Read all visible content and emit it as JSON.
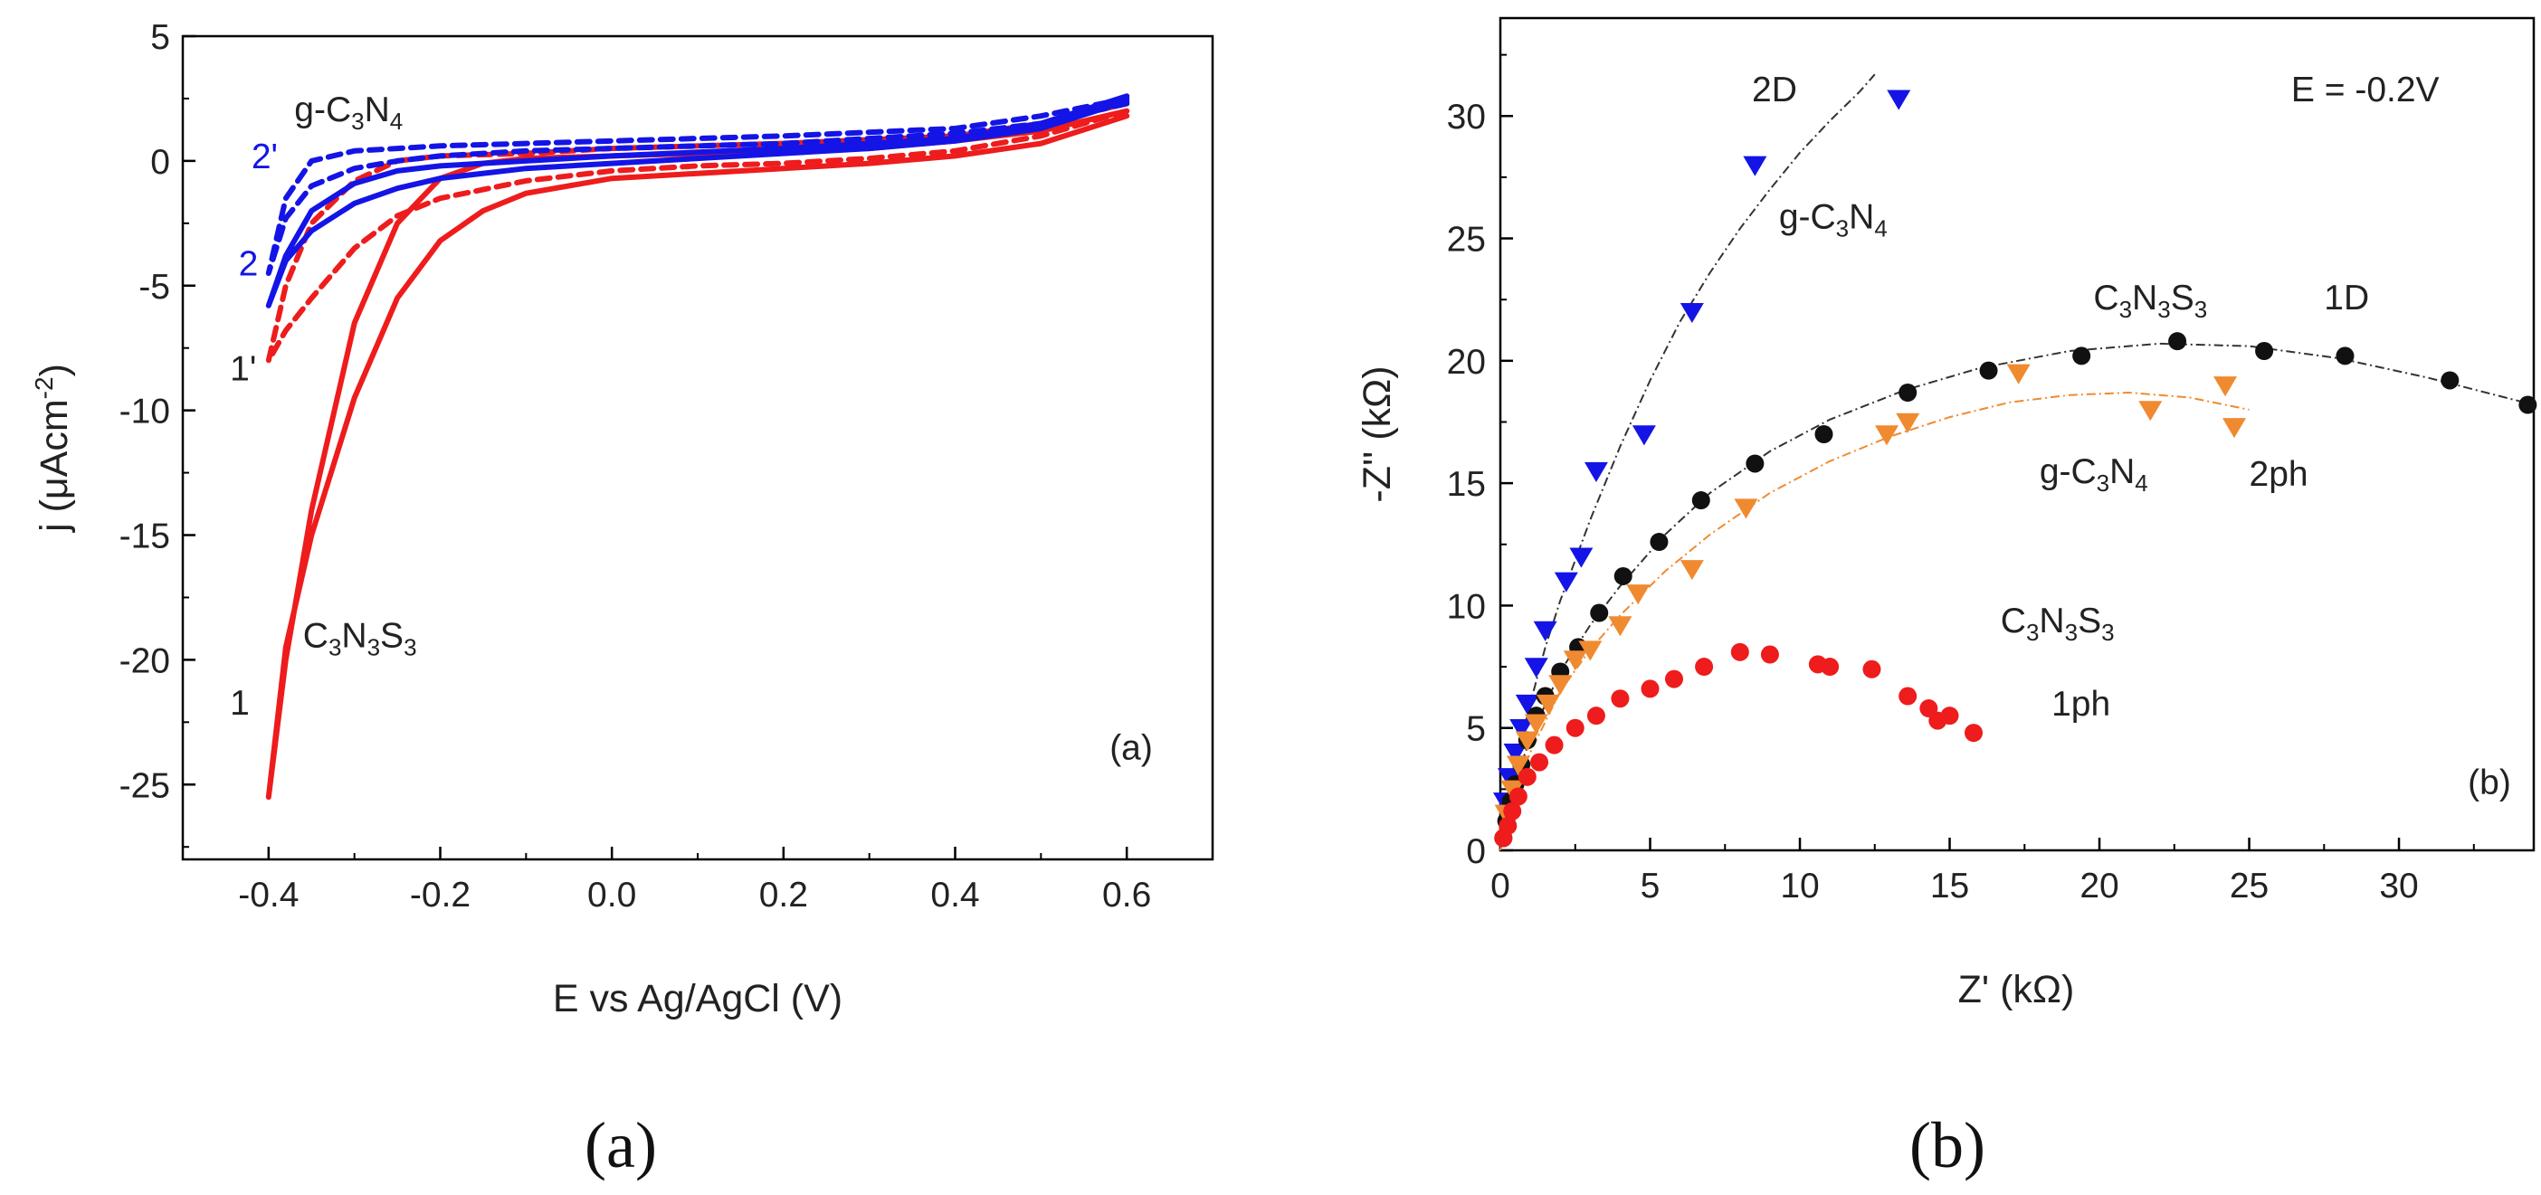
{
  "chart_data": [
    {
      "type": "line",
      "panel": "(a)",
      "xlabel": "E vs Ag/AgCl (V)",
      "ylabel_main": "j (μAcm",
      "ylabel_sup": "-2",
      "ylabel_close": ")",
      "xlim": [
        -0.5,
        0.7
      ],
      "ylim": [
        -28,
        5
      ],
      "xticks": [
        "-0.4",
        "-0.2",
        "0.0",
        "0.2",
        "0.4",
        "0.6"
      ],
      "xtick_values": [
        -0.4,
        -0.2,
        0.0,
        0.2,
        0.4,
        0.6
      ],
      "yticks": [
        "5",
        "0",
        "-5",
        "-10",
        "-15",
        "-20",
        "-25"
      ],
      "ytick_values": [
        5,
        0,
        -5,
        -10,
        -15,
        -20,
        -25
      ],
      "series": [
        {
          "name": "1 C3N3S3",
          "color": "#ee1c1c",
          "style": "solid",
          "x": [
            0.6,
            0.5,
            0.4,
            0.3,
            0.2,
            0.1,
            0.0,
            -0.1,
            -0.15,
            -0.2,
            -0.25,
            -0.3,
            -0.35,
            -0.38,
            -0.4,
            -0.38,
            -0.35,
            -0.3,
            -0.25,
            -0.2,
            -0.15,
            -0.1,
            0.0,
            0.1,
            0.2,
            0.3,
            0.4,
            0.5,
            0.6
          ],
          "y": [
            1.8,
            0.7,
            0.2,
            -0.1,
            -0.3,
            -0.5,
            -0.7,
            -1.3,
            -2.0,
            -3.2,
            -5.5,
            -9.5,
            -15.0,
            -19.5,
            -25.5,
            -20.0,
            -14.0,
            -6.5,
            -2.5,
            -0.7,
            -0.1,
            0.1,
            0.2,
            0.3,
            0.4,
            0.5,
            0.8,
            1.2,
            2.0
          ]
        },
        {
          "name": "1' C3N3S3",
          "color": "#ee1c1c",
          "style": "dashed",
          "x": [
            0.6,
            0.5,
            0.4,
            0.3,
            0.2,
            0.1,
            0.0,
            -0.1,
            -0.2,
            -0.25,
            -0.3,
            -0.35,
            -0.38,
            -0.4,
            -0.38,
            -0.35,
            -0.3,
            -0.25,
            -0.2,
            -0.1,
            0.0,
            0.2,
            0.4,
            0.5,
            0.6
          ],
          "y": [
            2.0,
            1.0,
            0.4,
            0.1,
            -0.1,
            -0.2,
            -0.4,
            -0.8,
            -1.5,
            -2.2,
            -3.5,
            -5.5,
            -6.8,
            -8.0,
            -5.0,
            -2.5,
            -0.8,
            0.0,
            0.2,
            0.3,
            0.5,
            0.7,
            1.0,
            1.5,
            2.3
          ]
        },
        {
          "name": "2 g-C3N4",
          "color": "#1414e6",
          "style": "solid",
          "x": [
            0.6,
            0.5,
            0.4,
            0.3,
            0.2,
            0.1,
            0.0,
            -0.1,
            -0.2,
            -0.25,
            -0.3,
            -0.35,
            -0.38,
            -0.4,
            -0.38,
            -0.35,
            -0.3,
            -0.25,
            -0.2,
            -0.1,
            0.0,
            0.2,
            0.4,
            0.5,
            0.6
          ],
          "y": [
            2.4,
            1.3,
            0.8,
            0.5,
            0.3,
            0.1,
            -0.1,
            -0.3,
            -0.7,
            -1.1,
            -1.7,
            -2.8,
            -4.0,
            -5.8,
            -3.8,
            -2.0,
            -0.9,
            -0.4,
            -0.2,
            0.0,
            0.2,
            0.5,
            0.9,
            1.5,
            2.6
          ]
        },
        {
          "name": "2' g-C3N4",
          "color": "#1414e6",
          "style": "dashed",
          "x": [
            0.6,
            0.5,
            0.4,
            0.3,
            0.2,
            0.1,
            0.0,
            -0.1,
            -0.2,
            -0.25,
            -0.3,
            -0.35,
            -0.38,
            -0.4,
            -0.38,
            -0.35,
            -0.3,
            -0.25,
            -0.2,
            -0.1,
            0.0,
            0.2,
            0.4,
            0.5,
            0.6
          ],
          "y": [
            2.3,
            1.5,
            1.1,
            0.9,
            0.7,
            0.6,
            0.5,
            0.4,
            0.2,
            0.0,
            -0.3,
            -1.0,
            -2.3,
            -4.5,
            -1.5,
            0.0,
            0.4,
            0.5,
            0.6,
            0.7,
            0.8,
            1.0,
            1.3,
            1.8,
            2.5
          ]
        }
      ],
      "annotations": [
        {
          "text": "g-C",
          "sub1": "3",
          "mid": "N",
          "sub2": "4",
          "x": -0.37,
          "y": 1.6,
          "color": "#222"
        },
        {
          "text": "2'",
          "x": -0.42,
          "y": -0.3,
          "color": "#1414e6"
        },
        {
          "text": "2",
          "x": -0.435,
          "y": -4.6,
          "color": "#1414e6"
        },
        {
          "text": "1'",
          "x": -0.445,
          "y": -8.8,
          "color": "#222"
        },
        {
          "text": "C",
          "sub1": "3",
          "mid": "N",
          "sub2": "3",
          "tail": "S",
          "sub3": "3",
          "x": -0.36,
          "y": -19.5,
          "color": "#222"
        },
        {
          "text": "1",
          "x": -0.445,
          "y": -22.2,
          "color": "#222"
        },
        {
          "text": "(a)",
          "x": 0.58,
          "y": -24.0,
          "color": "#222"
        }
      ]
    },
    {
      "type": "scatter",
      "panel": "(b)",
      "xlabel": "Z' (kΩ)",
      "ylabel": "-Z'' (kΩ)",
      "xlim": [
        0,
        34.5
      ],
      "ylim": [
        0,
        34
      ],
      "xticks": [
        "0",
        "5",
        "10",
        "15",
        "20",
        "25",
        "30"
      ],
      "xtick_values": [
        0,
        5,
        10,
        15,
        20,
        25,
        30
      ],
      "yticks": [
        "0",
        "5",
        "10",
        "15",
        "20",
        "25",
        "30"
      ],
      "ytick_values": [
        0,
        5,
        10,
        15,
        20,
        25,
        30
      ],
      "series": [
        {
          "name": "2D g-C3N4",
          "color": "#1414e6",
          "marker": "triangle-down",
          "x": [
            0.15,
            0.3,
            0.5,
            0.7,
            0.9,
            1.2,
            1.5,
            2.2,
            2.7,
            3.2,
            4.8,
            6.4,
            8.5,
            13.3
          ],
          "y": [
            2.0,
            3.0,
            4.0,
            5.0,
            6.0,
            7.5,
            9.0,
            11.0,
            12.0,
            15.5,
            17.0,
            22.0,
            28.0,
            30.7
          ]
        },
        {
          "name": "1D C3N3S3",
          "color": "#111111",
          "marker": "circle",
          "x": [
            0.1,
            0.2,
            0.35,
            0.5,
            0.7,
            0.9,
            1.2,
            1.5,
            2.0,
            2.6,
            3.3,
            4.1,
            5.3,
            6.7,
            8.5,
            10.8,
            13.6,
            16.3,
            19.4,
            22.6,
            25.5,
            28.2,
            31.7,
            34.3
          ],
          "y": [
            0.5,
            1.2,
            2.0,
            2.7,
            3.5,
            4.5,
            5.5,
            6.3,
            7.3,
            8.3,
            9.7,
            11.2,
            12.6,
            14.3,
            15.8,
            17.0,
            18.7,
            19.6,
            20.2,
            20.8,
            20.4,
            20.2,
            19.2,
            18.2
          ]
        },
        {
          "name": "2ph g-C3N4",
          "color": "#f08a30",
          "marker": "triangle-down",
          "x": [
            0.2,
            0.4,
            0.6,
            0.9,
            1.2,
            1.6,
            2.0,
            2.5,
            3.0,
            4.0,
            4.6,
            6.4,
            8.2,
            12.9,
            13.6,
            17.3,
            21.7,
            24.2,
            24.5
          ],
          "y": [
            1.5,
            2.5,
            3.5,
            4.5,
            5.2,
            6.0,
            6.8,
            7.8,
            8.2,
            9.2,
            10.5,
            11.5,
            14.0,
            17.0,
            17.5,
            19.5,
            18.0,
            19.0,
            17.3
          ]
        },
        {
          "name": "1ph C3N3S3",
          "color": "#ee1c1c",
          "marker": "circle",
          "x": [
            0.1,
            0.25,
            0.4,
            0.6,
            0.9,
            1.3,
            1.8,
            2.5,
            3.2,
            4.0,
            5.0,
            5.8,
            6.8,
            8.0,
            9.0,
            10.6,
            11.0,
            12.4,
            13.6,
            14.3,
            14.6,
            15.0,
            15.8
          ],
          "y": [
            0.5,
            1.0,
            1.6,
            2.2,
            3.0,
            3.6,
            4.3,
            5.0,
            5.5,
            6.2,
            6.6,
            7.0,
            7.5,
            8.1,
            8.0,
            7.6,
            7.5,
            7.4,
            6.3,
            5.8,
            5.3,
            5.5,
            4.8
          ]
        }
      ],
      "fit_lines": [
        {
          "name": "2D fit",
          "color": "#333333",
          "x": [
            0,
            0.5,
            1.0,
            1.5,
            2.0,
            3.0,
            4.0,
            5.0,
            6.0,
            7.0,
            8.0,
            9.0,
            10.0,
            11.0,
            12.0,
            12.5
          ],
          "y": [
            0,
            3.5,
            6.0,
            8.3,
            10.2,
            13.5,
            16.5,
            19.2,
            21.6,
            23.6,
            25.4,
            27.0,
            28.5,
            29.8,
            31.0,
            31.7
          ]
        },
        {
          "name": "1D fit",
          "color": "#333333",
          "x": [
            0,
            0.5,
            1.0,
            2.0,
            3.0,
            4.0,
            5.5,
            7.0,
            9.0,
            11.0,
            13.5,
            16.0,
            19.0,
            22.0,
            25.0,
            28.0,
            31.0,
            34.5
          ],
          "y": [
            0,
            2.8,
            4.6,
            7.3,
            9.2,
            10.8,
            12.9,
            14.6,
            16.3,
            17.6,
            18.8,
            19.7,
            20.4,
            20.7,
            20.6,
            20.1,
            19.3,
            18.2
          ]
        },
        {
          "name": "2ph fit",
          "color": "#f08a30",
          "x": [
            0,
            0.5,
            1.0,
            2.0,
            3.0,
            4.0,
            5.5,
            7.0,
            9.0,
            11.0,
            13.0,
            15.0,
            17.0,
            19.0,
            21.0,
            23.0,
            25.0
          ],
          "y": [
            0,
            2.5,
            4.0,
            6.5,
            8.2,
            9.6,
            11.4,
            12.9,
            14.6,
            15.9,
            16.9,
            17.7,
            18.3,
            18.6,
            18.7,
            18.5,
            18.0
          ]
        }
      ],
      "annotations": [
        {
          "text": "E = -0.2V",
          "x": 26.4,
          "y": 30.6,
          "color": "#222"
        },
        {
          "text": "2D",
          "x": 8.4,
          "y": 30.6,
          "color": "#222"
        },
        {
          "text": "g-C",
          "sub1": "3",
          "mid": "N",
          "sub2": "4",
          "x": 9.3,
          "y": 25.4,
          "color": "#222"
        },
        {
          "text": "C",
          "sub1": "3",
          "mid": "N",
          "sub2": "3",
          "tail": "S",
          "sub3": "3",
          "x": 19.8,
          "y": 22.1,
          "color": "#222"
        },
        {
          "text": "1D",
          "x": 27.5,
          "y": 22.1,
          "color": "#222"
        },
        {
          "text": "g-C",
          "sub1": "3",
          "mid": "N",
          "sub2": "4",
          "x": 18.0,
          "y": 15.0,
          "color": "#222"
        },
        {
          "text": "2ph",
          "x": 25.0,
          "y": 14.9,
          "color": "#222"
        },
        {
          "text": "C",
          "sub1": "3",
          "mid": "N",
          "sub2": "3",
          "tail": "S",
          "sub3": "3",
          "x": 16.7,
          "y": 8.9,
          "color": "#222"
        },
        {
          "text": "1ph",
          "x": 18.4,
          "y": 5.5,
          "color": "#222"
        },
        {
          "text": "(b)",
          "x": 32.3,
          "y": 2.3,
          "color": "#222"
        }
      ]
    }
  ],
  "captions": {
    "a": "(a)",
    "b": "(b)"
  }
}
